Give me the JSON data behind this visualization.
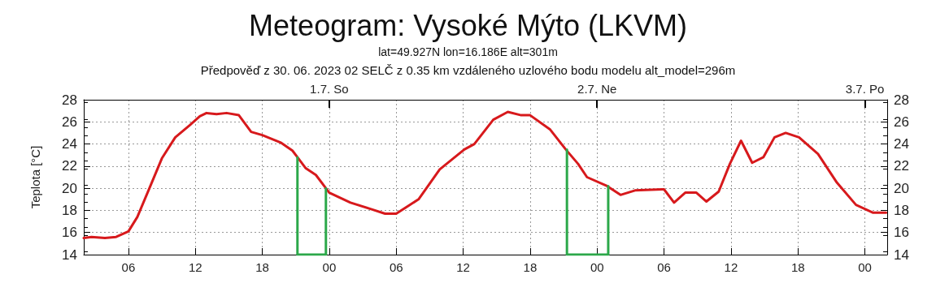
{
  "chart_data": {
    "type": "line",
    "title": "Meteogram: Vysoké Mýto (LKVM)",
    "subtitle": "lat=49.927N lon=16.186E alt=301m",
    "annotations": [
      "Předpověď z 30. 06. 2023 02 SELČ z 0.35 km vzdáleného uzlového bodu modelu alt_model=296m"
    ],
    "ylabel": "Teplota [°C]",
    "marker": "none",
    "line_style": "solid",
    "grid": true,
    "xlim": [
      "2023-06-30T02:00",
      "2023-07-03T02:00"
    ],
    "xticks": [
      {
        "value": "2023-06-30T06:00",
        "label": "06"
      },
      {
        "value": "2023-06-30T12:00",
        "label": "12"
      },
      {
        "value": "2023-06-30T18:00",
        "label": "18"
      },
      {
        "value": "2023-07-01T00:00",
        "label": "00"
      },
      {
        "value": "2023-07-01T06:00",
        "label": "06"
      },
      {
        "value": "2023-07-01T12:00",
        "label": "12"
      },
      {
        "value": "2023-07-01T18:00",
        "label": "18"
      },
      {
        "value": "2023-07-02T00:00",
        "label": "00"
      },
      {
        "value": "2023-07-02T06:00",
        "label": "06"
      },
      {
        "value": "2023-07-02T12:00",
        "label": "12"
      },
      {
        "value": "2023-07-02T18:00",
        "label": "18"
      },
      {
        "value": "2023-07-03T00:00",
        "label": "00"
      }
    ],
    "x2lim": [
      "2023-06-30T02:00",
      "2023-07-03T02:00"
    ],
    "x2ticks": [
      {
        "value": "2023-07-01",
        "label": "1.7. So"
      },
      {
        "value": "2023-07-02",
        "label": "2.7. Ne"
      },
      {
        "value": "2023-07-03",
        "label": "3.7. Po"
      }
    ],
    "ylim": [
      14,
      28
    ],
    "yticks": [
      14,
      16,
      18,
      20,
      22,
      24,
      26,
      28
    ],
    "y2lim": [
      14,
      28
    ],
    "y2ticks": [
      14,
      16,
      18,
      20,
      22,
      24,
      26,
      28
    ],
    "series": [
      {
        "color": "#d7191c",
        "x": [
          "2023-06-30T02:00",
          "2023-06-30T02:42",
          "2023-06-30T03:54",
          "2023-06-30T04:54",
          "2023-06-30T06:00",
          "2023-06-30T06:48",
          "2023-06-30T07:48",
          "2023-06-30T09:00",
          "2023-06-30T10:12",
          "2023-06-30T11:30",
          "2023-06-30T12:24",
          "2023-06-30T13:00",
          "2023-06-30T13:54",
          "2023-06-30T14:48",
          "2023-06-30T15:54",
          "2023-06-30T17:00",
          "2023-06-30T18:00",
          "2023-06-30T19:42",
          "2023-06-30T20:42",
          "2023-06-30T21:09",
          "2023-06-30T21:54",
          "2023-06-30T22:48",
          "2023-06-30T23:42",
          "2023-07-01T00:00",
          "2023-07-01T01:54",
          "2023-07-01T03:48",
          "2023-07-01T05:00",
          "2023-07-01T06:00",
          "2023-07-01T08:00",
          "2023-07-01T09:54",
          "2023-07-01T12:06",
          "2023-07-01T13:00",
          "2023-07-01T14:42",
          "2023-07-01T16:00",
          "2023-07-01T17:12",
          "2023-07-01T18:00",
          "2023-07-01T19:48",
          "2023-07-01T21:12",
          "2023-07-01T22:18",
          "2023-07-01T23:06",
          "2023-07-02T00:54",
          "2023-07-02T02:06",
          "2023-07-02T03:24",
          "2023-07-02T05:48",
          "2023-07-02T06:00",
          "2023-07-02T06:54",
          "2023-07-02T07:54",
          "2023-07-02T08:54",
          "2023-07-02T09:48",
          "2023-07-02T10:54",
          "2023-07-02T11:54",
          "2023-07-02T12:54",
          "2023-07-02T13:54",
          "2023-07-02T14:54",
          "2023-07-02T15:54",
          "2023-07-02T16:54",
          "2023-07-02T18:06",
          "2023-07-02T19:48",
          "2023-07-02T21:30",
          "2023-07-02T23:12",
          "2023-07-03T00:42",
          "2023-07-03T01:54"
        ],
        "values": [
          15.5,
          15.6,
          15.5,
          15.6,
          16.1,
          17.4,
          19.8,
          22.7,
          24.6,
          25.7,
          26.5,
          26.8,
          26.7,
          26.8,
          26.6,
          25.1,
          24.8,
          24.1,
          23.4,
          22.8,
          21.8,
          21.2,
          20.0,
          19.6,
          18.7,
          18.1,
          17.7,
          17.7,
          19.0,
          21.7,
          23.5,
          24.0,
          26.2,
          26.9,
          26.6,
          26.6,
          25.3,
          23.5,
          22.2,
          21.0,
          20.2,
          19.4,
          19.8,
          19.9,
          19.9,
          18.7,
          19.6,
          19.6,
          18.8,
          19.7,
          22.2,
          24.3,
          22.3,
          22.8,
          24.6,
          25.0,
          24.6,
          23.1,
          20.5,
          18.5,
          17.8,
          17.8
        ]
      },
      {
        "color": "#2ca84a",
        "x": [
          "2023-06-30T21:09",
          "2023-06-30T21:09",
          "2023-06-30T23:42",
          "2023-06-30T23:42"
        ],
        "values": [
          22.8,
          14,
          14,
          20.0
        ]
      },
      {
        "color": "#2ca84a",
        "x": [
          "2023-07-01T21:18",
          "2023-07-01T21:18",
          "2023-07-02T01:00",
          "2023-07-02T01:00"
        ],
        "values": [
          23.5,
          14,
          14,
          20.2
        ]
      }
    ]
  }
}
